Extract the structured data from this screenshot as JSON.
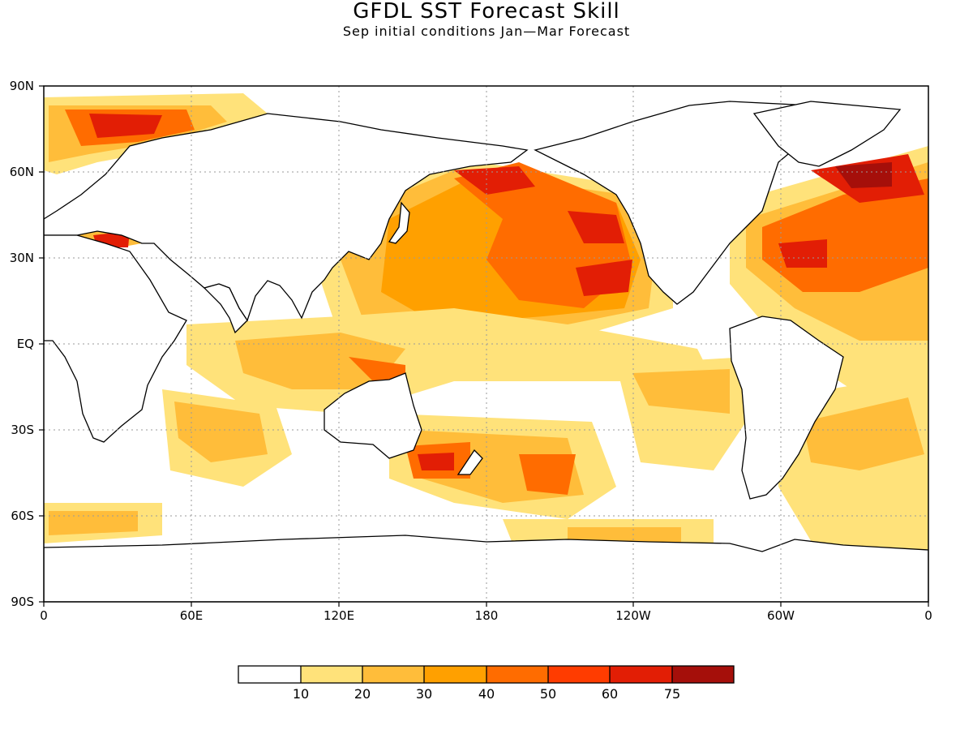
{
  "title": "GFDL SST Forecast Skill",
  "subtitle": "Sep initial conditions  Jan—Mar Forecast",
  "map": {
    "projection": "equirectangular",
    "lon_range": [
      0,
      360
    ],
    "lat_range": [
      -90,
      90
    ],
    "lat_labels": [
      "90N",
      "60N",
      "30N",
      "EQ",
      "30S",
      "60S",
      "90S"
    ],
    "lon_labels": [
      "0",
      "60E",
      "120E",
      "180",
      "120W",
      "60W",
      "0"
    ],
    "grid": "dotted every 30 degrees",
    "variable": "SST forecast skill"
  },
  "colorbar": {
    "colors": [
      "#ffffff",
      "#ffe27a",
      "#ffbd3a",
      "#ffa000",
      "#ff6c00",
      "#ff3c00",
      "#e21e05",
      "#a50f0a"
    ],
    "labels": [
      "10",
      "20",
      "30",
      "40",
      "50",
      "60",
      "75"
    ]
  }
}
